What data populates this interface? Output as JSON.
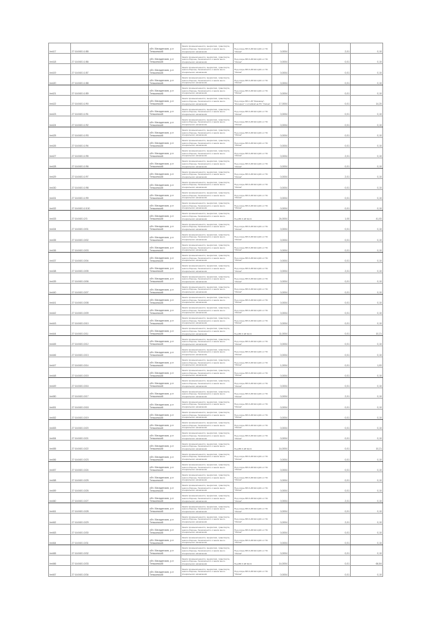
{
  "defaults": {
    "address": "обл. Магаданская, р-н Тенькинский",
    "category": "Земли промышленности, энергетики, транспорта, земли обороны, безопасности и земли иного специального назначения",
    "object": "Под опоры ВЛ-6 кВ №4 ЦЭС от ПС \"Омчак\"",
    "object_large": "Под ВЛ-6 кВ №1/1",
    "area": "0,0004",
    "col8": "0,01",
    "col9": "0,10"
  },
  "rows": [
    {
      "id": "bн417",
      "cad": "27:16:0601:1/85",
      "col8": "2,01"
    },
    {
      "id": "bн418",
      "cad": "27:16:0601:1/86"
    },
    {
      "id": "bн419",
      "cad": "27:16:0601:1/87"
    },
    {
      "id": "bн420",
      "cad": "27:16:0601:1/88"
    },
    {
      "id": "bн421",
      "cad": "27:16:0601:1/89"
    },
    {
      "id": "bн422",
      "cad": "27:16:0601:1/90",
      "object": "Под опоры ВЛ-1 кВ \"Ремзавод\"-\"Интернат\" с отпайкой на ПС \"Омчак\"",
      "area": "17,0004",
      "col9": "14,20",
      "large": true
    },
    {
      "id": "bн423",
      "cad": "27:16:0601:1/91"
    },
    {
      "id": "bн424",
      "cad": "27:16:0601:1/92"
    },
    {
      "id": "bн425",
      "cad": "27:16:0601:1/93"
    },
    {
      "id": "bн426",
      "cad": "27:16:0601:1/94"
    },
    {
      "id": "bн427",
      "cad": "27:16:0601:1/95",
      "col8": "2,01"
    },
    {
      "id": "bн428",
      "cad": "27:16:0601:1/96"
    },
    {
      "id": "bн429",
      "cad": "27:16:0601:1/97",
      "col8": "2,01"
    },
    {
      "id": "bн430",
      "cad": "27:16:0601:1/98"
    },
    {
      "id": "bн431",
      "cad": "27:16:0601:1/99"
    },
    {
      "id": "bн432",
      "cad": "27:16:0601:1/100"
    },
    {
      "id": "bн433",
      "cad": "27:16:0601:2/3",
      "area": "24,0004",
      "col8": "1,00",
      "col9": "41,00",
      "large": true
    },
    {
      "id": "bн434",
      "cad": "27:16:0601:3/01"
    },
    {
      "id": "bн435",
      "cad": "27:16:0601:3/02"
    },
    {
      "id": "bн436",
      "cad": "27:16:0601:3/03"
    },
    {
      "id": "bн437",
      "cad": "27:16:0601:3/04"
    },
    {
      "id": "bн438",
      "cad": "27:16:0601:3/05",
      "col8": "2,01"
    },
    {
      "id": "bн439",
      "cad": "27:16:0601:3/06"
    },
    {
      "id": "bн440",
      "cad": "27:16:0601:3/07"
    },
    {
      "id": "bн441",
      "cad": "27:16:0601:3/08"
    },
    {
      "id": "bн442",
      "cad": "27:16:0601:3/09"
    },
    {
      "id": "bн443",
      "cad": "27:16:0601:3/10"
    },
    {
      "id": "bн444",
      "cad": "27:16:0601:3/11",
      "area": "11,0004",
      "col9": "10,21",
      "large": true
    },
    {
      "id": "bн445",
      "cad": "27:16:0601:3/12"
    },
    {
      "id": "bн446",
      "cad": "27:16:0601:3/13"
    },
    {
      "id": "bн447",
      "cad": "27:16:0601:3/14",
      "area": "1,0004",
      "col9": "1,00"
    },
    {
      "id": "bн448",
      "cad": "27:16:0601:3/15"
    },
    {
      "id": "bн449",
      "cad": "27:16:0601:3/16"
    },
    {
      "id": "bн450",
      "cad": "27:16:0601:3/17",
      "col8": "2,01"
    },
    {
      "id": "bн451",
      "cad": "27:16:0601:3/18"
    },
    {
      "id": "bн452",
      "cad": "27:16:0601:3/19"
    },
    {
      "id": "bн453",
      "cad": "27:16:0601:3/20"
    },
    {
      "id": "bн454",
      "cad": "27:16:0601:3/21"
    },
    {
      "id": "bн455",
      "cad": "27:16:0601:3/22",
      "area": "14,0004",
      "col9": "10,21",
      "large": true
    },
    {
      "id": "bн456",
      "cad": "27:16:0601:3/23"
    },
    {
      "id": "bн457",
      "cad": "27:16:0601:3/24"
    },
    {
      "id": "bн458",
      "cad": "27:16:0601:3/25"
    },
    {
      "id": "bн459",
      "cad": "27:16:0601:3/26"
    },
    {
      "id": "bн460",
      "cad": "27:16:0601:3/27",
      "col8": "2,01"
    },
    {
      "id": "bн461",
      "cad": "27:16:0601:3/28"
    },
    {
      "id": "bн462",
      "cad": "27:16:0601:3/29",
      "col8": "2,01"
    },
    {
      "id": "bн463",
      "cad": "27:16:0601:3/30"
    },
    {
      "id": "bн464",
      "cad": "27:16:0601:3/31"
    },
    {
      "id": "bн465",
      "cad": "27:16:0601:3/32"
    },
    {
      "id": "bн466",
      "cad": "27:16:0601:3/33",
      "area": "14,0004",
      "col9": "66,84",
      "large": true
    },
    {
      "id": "bн467",
      "cad": "27:16:0601:3/34"
    }
  ]
}
